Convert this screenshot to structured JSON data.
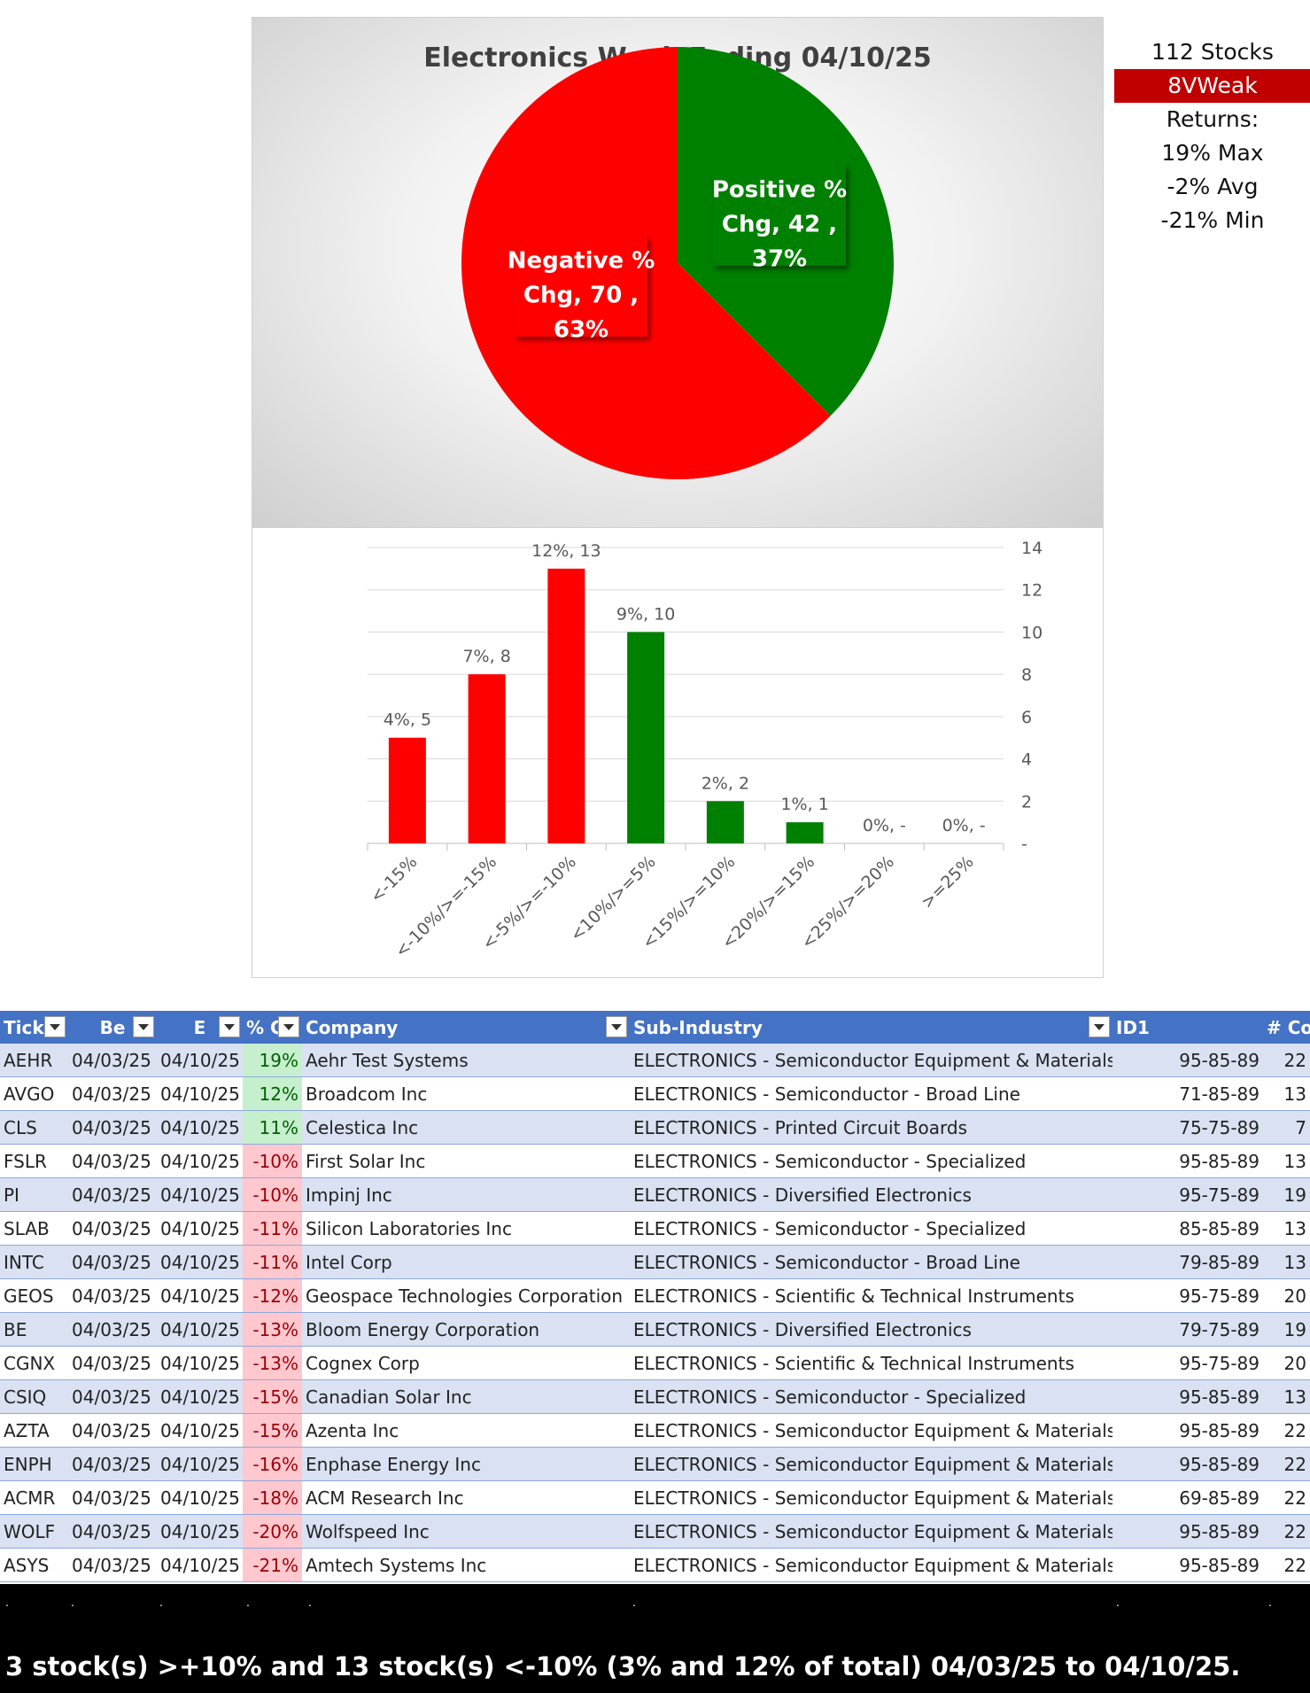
{
  "stats": {
    "stocks": "112 Stocks",
    "signal": "8VWeak",
    "returns_label": "Returns:",
    "max": "19% Max",
    "avg": "-2% Avg",
    "min": "-21% Min",
    "signal_color": "#c00000"
  },
  "chart_data": [
    {
      "type": "pie",
      "title": "Electronics Week Ending 04/10/25",
      "labels": [
        "Positive % Chg",
        "Negative % Chg"
      ],
      "values": [
        42,
        70
      ],
      "percentages": [
        "37%",
        "63%"
      ],
      "colors": [
        "#008000",
        "#ff0000"
      ],
      "label_lines": [
        [
          "Positive %",
          "Chg,  42 ,",
          "37%"
        ],
        [
          "Negative %",
          "Chg,  70 ,",
          "63%"
        ]
      ]
    },
    {
      "type": "bar",
      "categories": [
        "<-15%",
        "<-10%/>=-15%",
        "<-5%/>=-10%",
        "<10%/>=5%",
        "<15%/>=10%",
        "<20%/>=15%",
        "<25%/>=20%",
        ">=25%"
      ],
      "values": [
        5,
        8,
        13,
        10,
        2,
        1,
        0,
        0
      ],
      "data_labels": [
        "4%,  5",
        "7%,  8",
        "12%,  13",
        "9%,  10",
        "2%,  2",
        "1%,  1",
        "0%,  -",
        "0%,  -"
      ],
      "colors": [
        "#ff0000",
        "#ff0000",
        "#ff0000",
        "#008000",
        "#008000",
        "#008000",
        "#008000",
        "#008000"
      ],
      "ylim": [
        0,
        14
      ],
      "yticks": [
        "-",
        "2",
        "4",
        "6",
        "8",
        "10",
        "12",
        "14"
      ],
      "y_axis_side": "right",
      "grid": true
    }
  ],
  "table": {
    "headers": [
      "Tick",
      "Be",
      "E",
      "% C",
      "Company",
      "Sub-Industry",
      "ID1",
      "# Cos"
    ],
    "rows": [
      [
        "AEHR",
        "04/03/25",
        "04/10/25",
        "19%",
        "Aehr Test Systems",
        "ELECTRONICS - Semiconductor Equipment & Materials",
        "95-85-89",
        "22"
      ],
      [
        "AVGO",
        "04/03/25",
        "04/10/25",
        "12%",
        "Broadcom Inc",
        "ELECTRONICS - Semiconductor - Broad Line",
        "71-85-89",
        "13"
      ],
      [
        "CLS",
        "04/03/25",
        "04/10/25",
        "11%",
        "Celestica Inc",
        "ELECTRONICS - Printed Circuit Boards",
        "75-75-89",
        "7"
      ],
      [
        "FSLR",
        "04/03/25",
        "04/10/25",
        "-10%",
        "First Solar Inc",
        "ELECTRONICS - Semiconductor - Specialized",
        "95-85-89",
        "13"
      ],
      [
        "PI",
        "04/03/25",
        "04/10/25",
        "-10%",
        "Impinj Inc",
        "ELECTRONICS - Diversified Electronics",
        "95-75-89",
        "19"
      ],
      [
        "SLAB",
        "04/03/25",
        "04/10/25",
        "-11%",
        "Silicon Laboratories Inc",
        "ELECTRONICS - Semiconductor - Specialized",
        "85-85-89",
        "13"
      ],
      [
        "INTC",
        "04/03/25",
        "04/10/25",
        "-11%",
        "Intel Corp",
        "ELECTRONICS - Semiconductor - Broad Line",
        "79-85-89",
        "13"
      ],
      [
        "GEOS",
        "04/03/25",
        "04/10/25",
        "-12%",
        "Geospace Technologies Corporation",
        "ELECTRONICS - Scientific & Technical Instruments",
        "95-75-89",
        "20"
      ],
      [
        "BE",
        "04/03/25",
        "04/10/25",
        "-13%",
        "Bloom Energy Corporation",
        "ELECTRONICS - Diversified Electronics",
        "79-75-89",
        "19"
      ],
      [
        "CGNX",
        "04/03/25",
        "04/10/25",
        "-13%",
        "Cognex Corp",
        "ELECTRONICS - Scientific & Technical Instruments",
        "95-75-89",
        "20"
      ],
      [
        "CSIQ",
        "04/03/25",
        "04/10/25",
        "-15%",
        "Canadian Solar Inc",
        "ELECTRONICS - Semiconductor - Specialized",
        "95-85-89",
        "13"
      ],
      [
        "AZTA",
        "04/03/25",
        "04/10/25",
        "-15%",
        "Azenta Inc",
        "ELECTRONICS - Semiconductor Equipment & Materials",
        "95-85-89",
        "22"
      ],
      [
        "ENPH",
        "04/03/25",
        "04/10/25",
        "-16%",
        "Enphase Energy Inc",
        "ELECTRONICS - Semiconductor Equipment & Materials",
        "95-85-89",
        "22"
      ],
      [
        "ACMR",
        "04/03/25",
        "04/10/25",
        "-18%",
        "ACM Research Inc",
        "ELECTRONICS - Semiconductor Equipment & Materials",
        "69-85-89",
        "22"
      ],
      [
        "WOLF",
        "04/03/25",
        "04/10/25",
        "-20%",
        "Wolfspeed Inc",
        "ELECTRONICS - Semiconductor Equipment & Materials",
        "95-85-89",
        "22"
      ],
      [
        "ASYS",
        "04/03/25",
        "04/10/25",
        "-21%",
        "Amtech Systems Inc",
        "ELECTRONICS - Semiconductor Equipment & Materials",
        "95-85-89",
        "22"
      ]
    ]
  },
  "footer": {
    "text": "3 stock(s) >+10% and 13 stock(s) <-10% (3% and 12% of total) 04/03/25 to 04/10/25."
  }
}
